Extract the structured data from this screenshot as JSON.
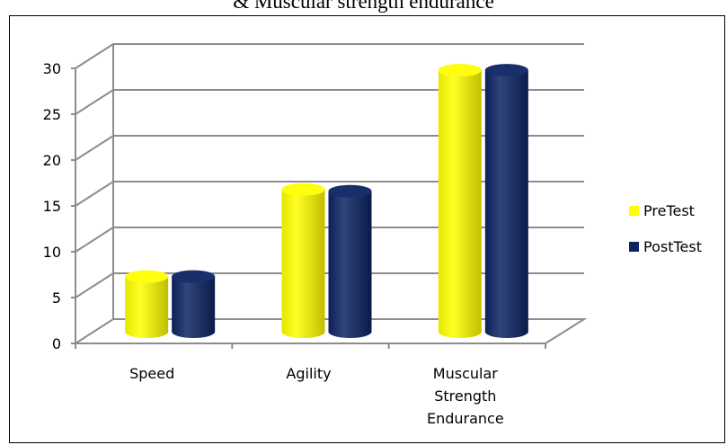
{
  "title_text": "& Muscular strength endurance",
  "colors": {
    "pretest": "#ffff00",
    "posttest": "#0d2462",
    "grid": "#8c8c8c"
  },
  "chart_data": {
    "type": "bar",
    "title": "& Muscular strength endurance",
    "categories": [
      "Speed",
      "Agility",
      "Muscular Strength Endurance"
    ],
    "category_lines": [
      [
        "Speed"
      ],
      [
        "Agility"
      ],
      [
        "Muscular",
        "Strength",
        "Endurance"
      ]
    ],
    "series": [
      {
        "name": "PreTest",
        "values": [
          7,
          16.5,
          29.5
        ]
      },
      {
        "name": "PostTest",
        "values": [
          7,
          16.3,
          29.5
        ]
      }
    ],
    "ylim": [
      0,
      30
    ],
    "yticks": [
      "0",
      "5",
      "10",
      "15",
      "20",
      "25",
      "30"
    ],
    "grid": true,
    "legend": "right",
    "style": "3d-cylinder"
  }
}
